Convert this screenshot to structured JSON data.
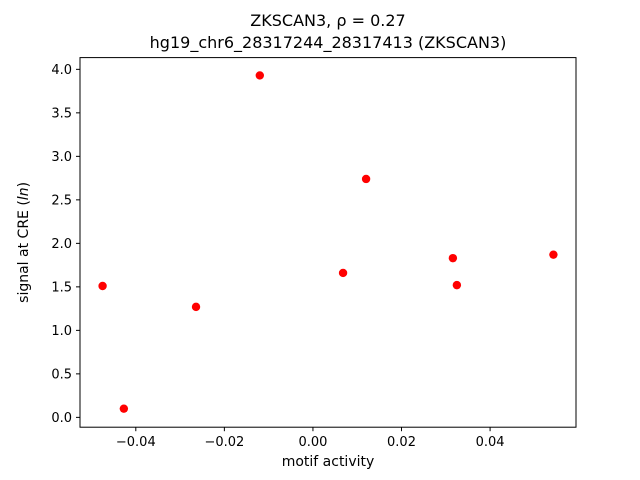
{
  "chart_data": {
    "type": "scatter",
    "title_line1": "ZKSCAN3, ρ = 0.27",
    "title_line2": "hg19_chr6_28317244_28317413 (ZKSCAN3)",
    "xlabel": "motif activity",
    "ylabel_prefix": "signal at CRE (",
    "ylabel_italic": "ln",
    "ylabel_suffix": ")",
    "marker_color": "#ff0000",
    "axis_color": "#000000",
    "xlim": [
      -0.0526,
      0.0594
    ],
    "ylim": [
      -0.113,
      4.135
    ],
    "x_ticks": [
      {
        "value": -0.04,
        "label": "−0.04"
      },
      {
        "value": -0.02,
        "label": "−0.02"
      },
      {
        "value": 0.0,
        "label": "0.00"
      },
      {
        "value": 0.02,
        "label": "0.02"
      },
      {
        "value": 0.04,
        "label": "0.04"
      }
    ],
    "y_ticks": [
      {
        "value": 0.0,
        "label": "0.0"
      },
      {
        "value": 0.5,
        "label": "0.5"
      },
      {
        "value": 1.0,
        "label": "1.0"
      },
      {
        "value": 1.5,
        "label": "1.5"
      },
      {
        "value": 2.0,
        "label": "2.0"
      },
      {
        "value": 2.5,
        "label": "2.5"
      },
      {
        "value": 3.0,
        "label": "3.0"
      },
      {
        "value": 3.5,
        "label": "3.5"
      },
      {
        "value": 4.0,
        "label": "4.0"
      }
    ],
    "points": [
      {
        "x": -0.0475,
        "y": 1.51
      },
      {
        "x": -0.0427,
        "y": 0.1
      },
      {
        "x": -0.0264,
        "y": 1.27
      },
      {
        "x": -0.012,
        "y": 3.93
      },
      {
        "x": 0.0068,
        "y": 1.66
      },
      {
        "x": 0.012,
        "y": 2.74
      },
      {
        "x": 0.0316,
        "y": 1.83
      },
      {
        "x": 0.0325,
        "y": 1.52
      },
      {
        "x": 0.0543,
        "y": 1.87
      }
    ]
  }
}
